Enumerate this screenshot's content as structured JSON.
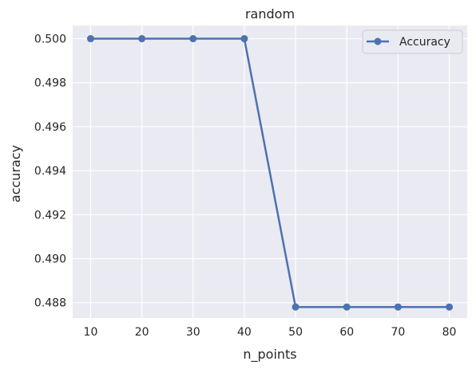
{
  "chart_data": {
    "type": "line",
    "title": "random",
    "xlabel": "n_points",
    "ylabel": "accuracy",
    "x": [
      10,
      20,
      30,
      40,
      50,
      60,
      70,
      80
    ],
    "x_ticks": [
      10,
      20,
      30,
      40,
      50,
      60,
      70,
      80
    ],
    "y_ticks": [
      0.488,
      0.49,
      0.492,
      0.494,
      0.496,
      0.498,
      0.5
    ],
    "y_tick_labels": [
      "0.488",
      "0.490",
      "0.492",
      "0.494",
      "0.496",
      "0.498",
      "0.500"
    ],
    "xlim": [
      6.5,
      83.5
    ],
    "ylim": [
      0.4873,
      0.5006
    ],
    "grid": true,
    "legend_position": "top-right",
    "series": [
      {
        "name": "Accuracy",
        "color": "#4c72b0",
        "marker": "circle",
        "values": [
          0.5,
          0.5,
          0.5,
          0.5,
          0.4878,
          0.4878,
          0.4878,
          0.4878
        ]
      }
    ],
    "colors": {
      "plot_background": "#eaeaf2",
      "grid": "#ffffff",
      "text": "#262626"
    }
  }
}
